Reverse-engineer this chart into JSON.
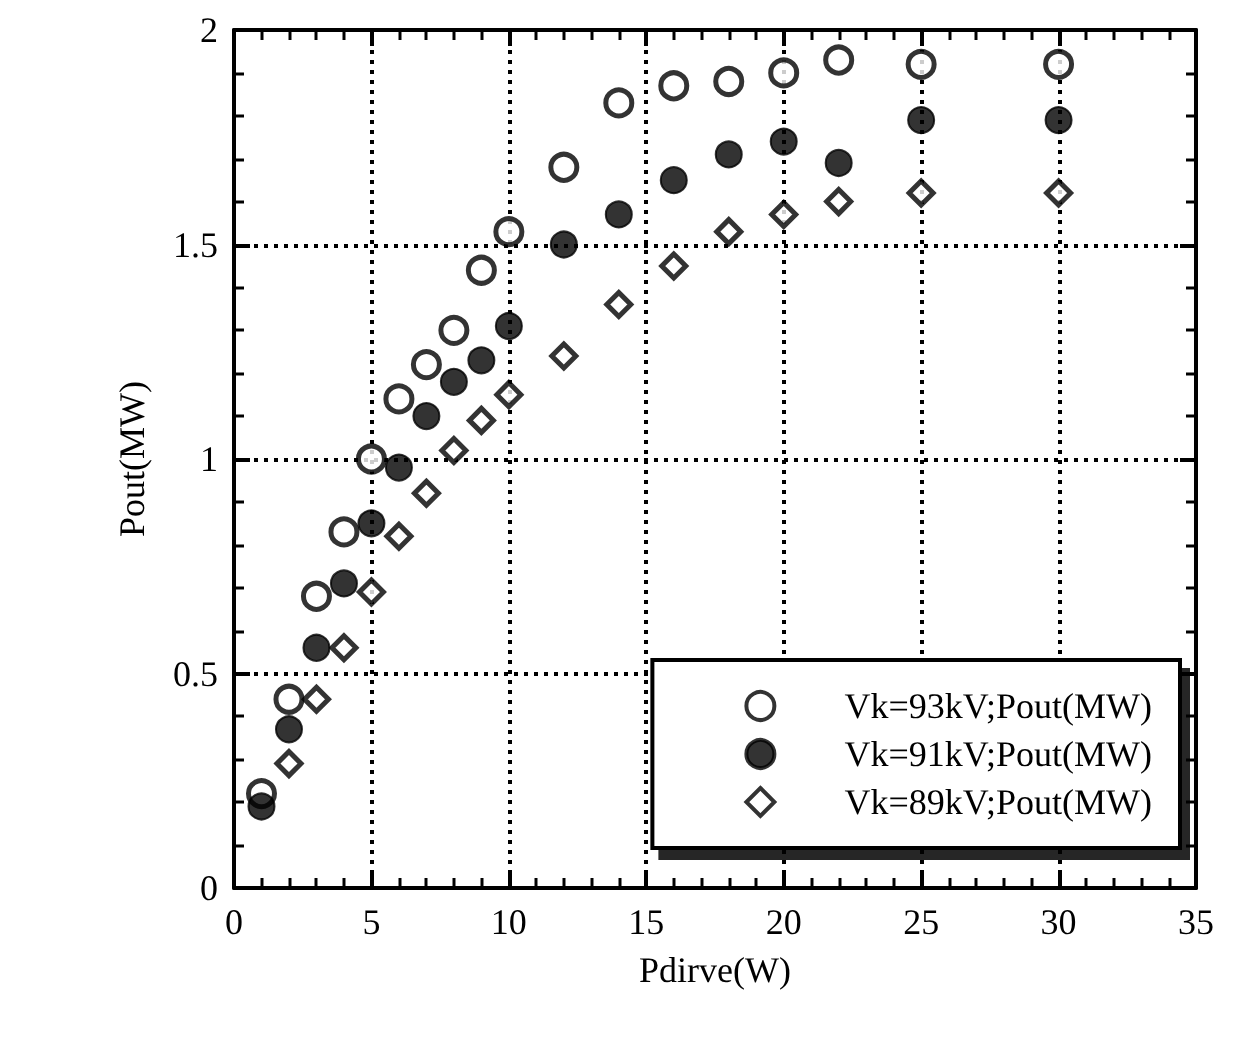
{
  "chart_data": {
    "type": "scatter",
    "xlabel": "Pdirve(W)",
    "ylabel": "Pout(MW)",
    "x": [
      1,
      2,
      3,
      4,
      5,
      6,
      7,
      8,
      9,
      10,
      12,
      14,
      16,
      18,
      20,
      22,
      25,
      30
    ],
    "series": [
      {
        "name": "Vk=93kV;Pout(MW)",
        "color": "#ffffff",
        "marker": "circle",
        "values": [
          0.22,
          0.44,
          0.68,
          0.83,
          1.0,
          1.14,
          1.22,
          1.3,
          1.44,
          1.53,
          1.68,
          1.83,
          1.87,
          1.88,
          1.9,
          1.93,
          1.92,
          1.92
        ]
      },
      {
        "name": "Vk=91kV;Pout(MW)",
        "color": "#000000",
        "marker": "circle",
        "values": [
          0.19,
          0.37,
          0.56,
          0.71,
          0.85,
          0.98,
          1.1,
          1.18,
          1.23,
          1.31,
          1.5,
          1.57,
          1.65,
          1.71,
          1.74,
          1.69,
          1.79,
          1.79
        ]
      },
      {
        "name": "Vk=89kV;Pout(MW)",
        "color": "#ffffff",
        "marker": "diamond",
        "values": [
          null,
          0.29,
          0.44,
          0.56,
          0.69,
          0.82,
          0.92,
          1.02,
          1.09,
          1.15,
          1.24,
          1.36,
          1.45,
          1.53,
          1.57,
          1.6,
          1.62,
          1.62
        ]
      }
    ],
    "xlim": [
      0,
      35
    ],
    "xticks": [
      0,
      5,
      10,
      15,
      20,
      25,
      30,
      35
    ],
    "ylim": [
      0,
      2
    ],
    "yticks": [
      0,
      0.5,
      1,
      1.5,
      2
    ],
    "grid": true,
    "legend": "bottom right"
  }
}
